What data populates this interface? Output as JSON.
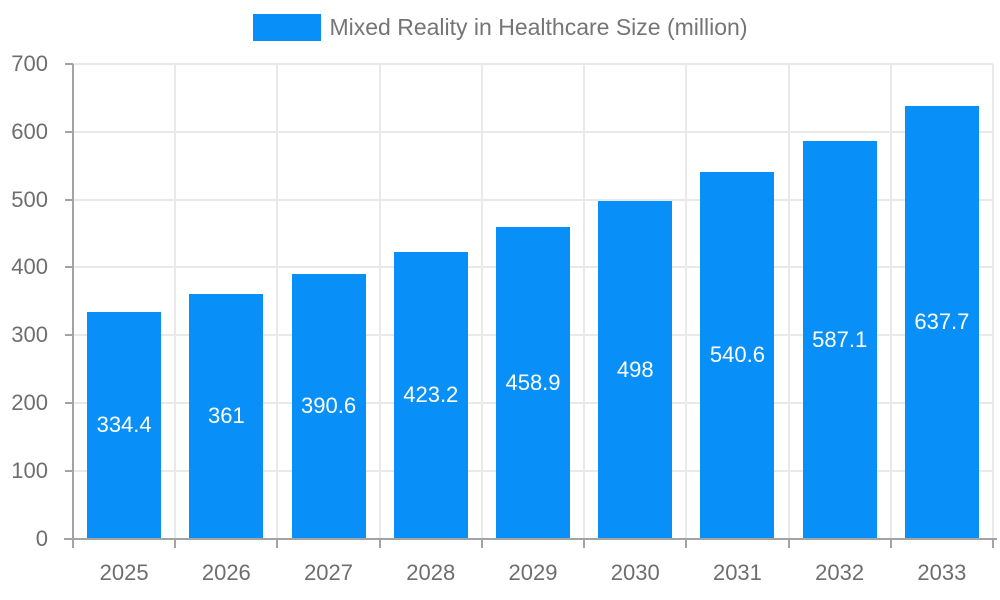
{
  "chart_data": {
    "type": "bar",
    "title": "Mixed Reality in Healthcare Size (million)",
    "categories": [
      "2025",
      "2026",
      "2027",
      "2028",
      "2029",
      "2030",
      "2031",
      "2032",
      "2033"
    ],
    "values": [
      334.4,
      361,
      390.6,
      423.2,
      458.9,
      498,
      540.6,
      587.1,
      637.7
    ],
    "yticks": [
      0,
      100,
      200,
      300,
      400,
      500,
      600,
      700
    ],
    "ylim": [
      0,
      700
    ],
    "xlabel": "",
    "ylabel": "",
    "grid": true,
    "legend_position": "top",
    "bar_color": "#0890f8",
    "value_label_color": "#ffffff",
    "axis_label_color": "#6e6e6e",
    "legend_text_color": "#757575",
    "grid_color": "#e9e9e9",
    "axis_line_color": "#a3a3a3"
  }
}
